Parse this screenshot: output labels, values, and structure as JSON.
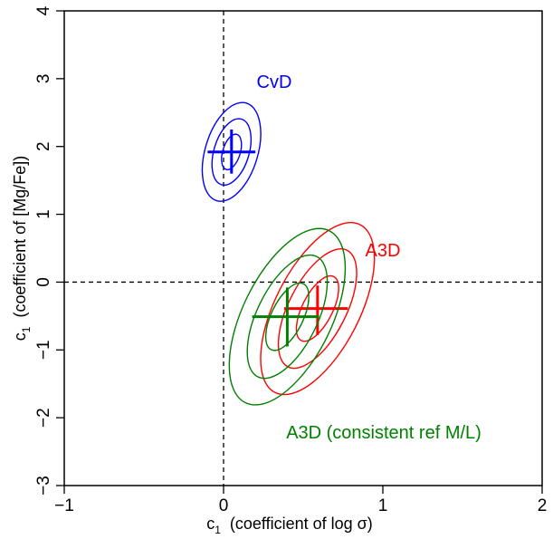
{
  "chart_data": {
    "type": "scatter",
    "title": "",
    "xlabel": {
      "main": "c",
      "sub": "1",
      "rest": "  (coefficient of log σ)"
    },
    "ylabel": {
      "main": "c",
      "sub": "1",
      "rest": "  (coefficient of [Mg/Fe])"
    },
    "xlim": [
      -1,
      2
    ],
    "ylim": [
      -3,
      4
    ],
    "xticks": [
      -1,
      0,
      1,
      2
    ],
    "xtick_labels": [
      "−1",
      "0",
      "1",
      "2"
    ],
    "yticks": [
      -3,
      -2,
      -1,
      0,
      1,
      2,
      3,
      4
    ],
    "ytick_labels": [
      "−3",
      "−2",
      "−1",
      "0",
      "1",
      "2",
      "3",
      "4"
    ],
    "grid": false,
    "reference_lines": {
      "x": 0,
      "y": 0,
      "style": "dashed"
    },
    "series": [
      {
        "name": "CvD",
        "color": "#0000ff",
        "center": [
          0.05,
          1.92
        ],
        "error_bar_x": [
          -0.1,
          0.2
        ],
        "error_bar_y": [
          1.6,
          2.25
        ],
        "ellipses": [
          {
            "a": 0.23,
            "b": 0.11,
            "angle_deg": -73
          },
          {
            "a": 0.43,
            "b": 0.22,
            "angle_deg": -73
          },
          {
            "a": 0.64,
            "b": 0.33,
            "angle_deg": -73
          }
        ]
      },
      {
        "name": "A3D",
        "color": "#ff0000",
        "center": [
          0.59,
          -0.39
        ],
        "error_bar_x": [
          0.38,
          0.78
        ],
        "error_bar_y": [
          -0.78,
          -0.05
        ],
        "ellipses": [
          {
            "a": 0.45,
            "b": 0.19,
            "angle_deg": -63
          },
          {
            "a": 0.82,
            "b": 0.36,
            "angle_deg": -63
          },
          {
            "a": 1.18,
            "b": 0.53,
            "angle_deg": -63
          }
        ]
      },
      {
        "name": "A3D (consistent ref M/L)",
        "color": "#008000",
        "center": [
          0.4,
          -0.51
        ],
        "error_bar_x": [
          0.18,
          0.6
        ],
        "error_bar_y": [
          -0.95,
          -0.08
        ],
        "ellipses": [
          {
            "a": 0.46,
            "b": 0.2,
            "angle_deg": -64
          },
          {
            "a": 0.84,
            "b": 0.38,
            "angle_deg": -64
          },
          {
            "a": 1.2,
            "b": 0.56,
            "angle_deg": -64
          }
        ]
      }
    ]
  }
}
